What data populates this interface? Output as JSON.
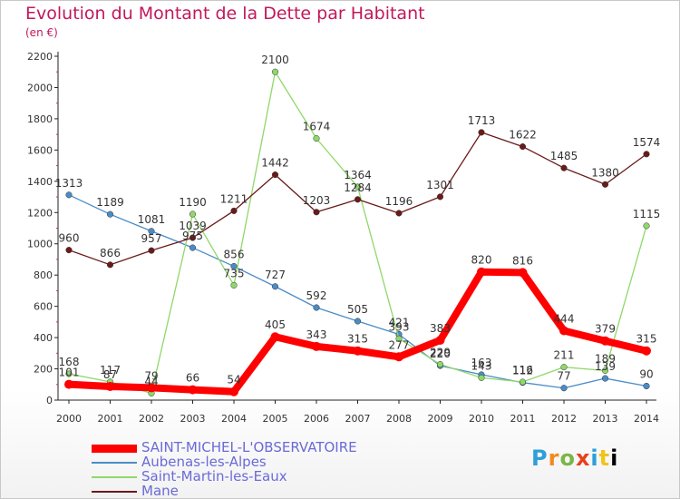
{
  "title": "Evolution du Montant de la Dette par Habitant",
  "unit": "(en €)",
  "logo_text": "Proxiti",
  "chart_data": {
    "type": "line",
    "title": "Evolution du Montant de la Dette par Habitant",
    "subtitle": "(en €)",
    "x": [
      2000,
      2001,
      2002,
      2003,
      2004,
      2005,
      2006,
      2007,
      2008,
      2009,
      2010,
      2011,
      2012,
      2013,
      2014
    ],
    "ylim": [
      0,
      2200
    ],
    "yticks": [
      0,
      200,
      400,
      600,
      800,
      1000,
      1200,
      1400,
      1600,
      1800,
      2000,
      2200
    ],
    "grid": false,
    "legend_position": "bottom-left",
    "series": [
      {
        "name": "SAINT-MICHEL-L'OBSERVATOIRE",
        "color": "#ff0000",
        "values": [
          101,
          87,
          79,
          66,
          54,
          405,
          343,
          315,
          277,
          383,
          820,
          816,
          444,
          379,
          315
        ]
      },
      {
        "name": "Aubenas-les-Alpes",
        "color": "#4a8cc8",
        "values": [
          1313,
          1189,
          1081,
          975,
          856,
          727,
          592,
          505,
          421,
          220,
          163,
          112,
          77,
          139,
          90
        ]
      },
      {
        "name": "Saint-Martin-les-Eaux",
        "color": "#8fd86a",
        "values": [
          168,
          117,
          44,
          1190,
          735,
          2100,
          1674,
          1364,
          393,
          229,
          143,
          116,
          211,
          189,
          1115
        ]
      },
      {
        "name": "Mane",
        "color": "#6b1a1a",
        "values": [
          960,
          866,
          957,
          1039,
          1211,
          1442,
          1203,
          1284,
          1196,
          1301,
          1713,
          1622,
          1485,
          1380,
          1574
        ]
      }
    ]
  }
}
